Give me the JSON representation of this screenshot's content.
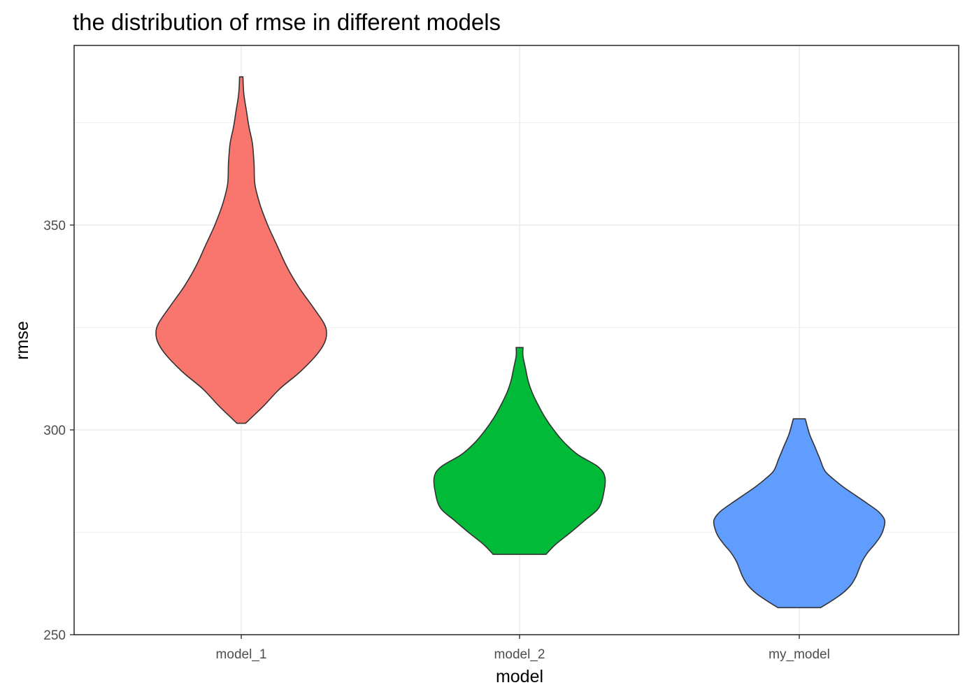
{
  "chart_data": {
    "type": "violin",
    "title": "the distribution of rmse in different models",
    "xlabel": "model",
    "ylabel": "rmse",
    "categories": [
      "model_1",
      "model_2",
      "my_model"
    ],
    "y_ticks": [
      250,
      300,
      350
    ],
    "ylim": [
      250,
      392
    ],
    "grid": true,
    "legend": "none",
    "theme": "bw",
    "series": [
      {
        "category": "model_1",
        "color": "#F8766D",
        "min": 301.6,
        "max": 386.2,
        "density": [
          [
            301.6,
            0.05
          ],
          [
            303,
            0.12
          ],
          [
            306,
            0.27
          ],
          [
            310,
            0.45
          ],
          [
            314,
            0.68
          ],
          [
            318,
            0.87
          ],
          [
            321,
            0.97
          ],
          [
            323.5,
            1.0
          ],
          [
            326,
            0.97
          ],
          [
            330,
            0.84
          ],
          [
            335,
            0.67
          ],
          [
            340,
            0.53
          ],
          [
            345,
            0.42
          ],
          [
            350,
            0.31
          ],
          [
            355,
            0.22
          ],
          [
            360,
            0.16
          ],
          [
            365,
            0.15
          ],
          [
            370,
            0.13
          ],
          [
            374,
            0.09
          ],
          [
            378,
            0.06
          ],
          [
            382,
            0.03
          ],
          [
            386.2,
            0.02
          ]
        ]
      },
      {
        "category": "model_2",
        "color": "#00BA38",
        "min": 269.6,
        "max": 320.1,
        "density": [
          [
            269.6,
            0.31
          ],
          [
            272,
            0.42
          ],
          [
            275,
            0.6
          ],
          [
            278,
            0.77
          ],
          [
            281,
            0.93
          ],
          [
            285,
            0.99
          ],
          [
            288.5,
            1.0
          ],
          [
            291,
            0.92
          ],
          [
            294,
            0.68
          ],
          [
            297,
            0.52
          ],
          [
            300,
            0.4
          ],
          [
            303,
            0.3
          ],
          [
            306,
            0.22
          ],
          [
            309,
            0.15
          ],
          [
            312,
            0.1
          ],
          [
            315,
            0.07
          ],
          [
            318,
            0.04
          ],
          [
            320.1,
            0.04
          ]
        ]
      },
      {
        "category": "my_model",
        "color": "#619CFF",
        "min": 256.6,
        "max": 302.7,
        "density": [
          [
            256.6,
            0.25
          ],
          [
            258,
            0.36
          ],
          [
            260,
            0.5
          ],
          [
            262,
            0.6
          ],
          [
            264,
            0.66
          ],
          [
            266,
            0.7
          ],
          [
            268,
            0.74
          ],
          [
            270,
            0.8
          ],
          [
            272,
            0.88
          ],
          [
            274,
            0.95
          ],
          [
            276,
            0.99
          ],
          [
            278,
            1.0
          ],
          [
            280,
            0.93
          ],
          [
            282,
            0.8
          ],
          [
            284,
            0.66
          ],
          [
            286,
            0.52
          ],
          [
            288,
            0.4
          ],
          [
            290,
            0.3
          ],
          [
            293,
            0.24
          ],
          [
            296,
            0.18
          ],
          [
            299,
            0.12
          ],
          [
            302.7,
            0.07
          ]
        ]
      }
    ]
  }
}
